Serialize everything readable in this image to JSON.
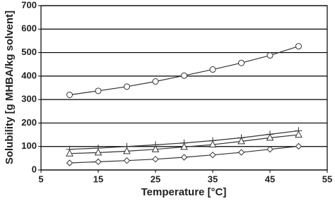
{
  "chart_data": {
    "type": "line",
    "x_label": "Temperature [°C]",
    "y_label": "Solubility [g MHBA/kg solvent]",
    "x": [
      10,
      15,
      20,
      25,
      30,
      35,
      40,
      45,
      50
    ],
    "series": [
      {
        "marker": "circle",
        "color": "#333333",
        "values": [
          320,
          337,
          355,
          377,
          402,
          428,
          456,
          488,
          527
        ]
      },
      {
        "marker": "plus",
        "color": "#333333",
        "values": [
          88,
          93,
          100,
          107,
          115,
          125,
          137,
          152,
          167
        ]
      },
      {
        "marker": "triangle",
        "color": "#333333",
        "values": [
          70,
          74,
          80,
          88,
          98,
          108,
          122,
          137,
          150
        ]
      },
      {
        "marker": "diamond",
        "color": "#333333",
        "values": [
          30,
          35,
          40,
          46,
          54,
          64,
          75,
          88,
          101
        ]
      }
    ],
    "xlim": [
      5,
      55
    ],
    "xticks": [
      5,
      15,
      25,
      35,
      45,
      55
    ],
    "ylim": [
      0,
      700
    ],
    "yticks": [
      0,
      100,
      200,
      300,
      400,
      500,
      600,
      700
    ],
    "grid": true
  }
}
